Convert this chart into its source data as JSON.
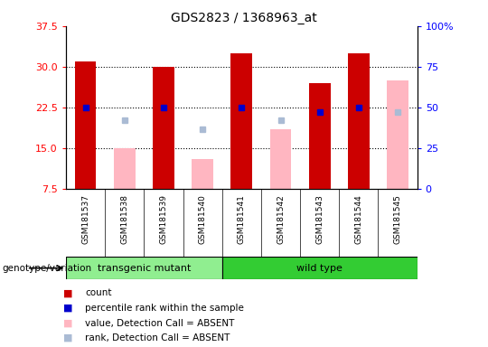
{
  "title": "GDS2823 / 1368963_at",
  "samples": [
    "GSM181537",
    "GSM181538",
    "GSM181539",
    "GSM181540",
    "GSM181541",
    "GSM181542",
    "GSM181543",
    "GSM181544",
    "GSM181545"
  ],
  "count_values": [
    31.0,
    null,
    30.0,
    null,
    32.5,
    null,
    27.0,
    32.5,
    null
  ],
  "rank_pct": [
    50.0,
    null,
    50.0,
    null,
    50.0,
    null,
    47.0,
    50.0,
    null
  ],
  "absent_value_values": [
    null,
    15.0,
    null,
    13.0,
    null,
    18.5,
    null,
    null,
    27.5
  ],
  "absent_rank_pct": [
    null,
    42.0,
    null,
    37.0,
    null,
    42.0,
    null,
    null,
    47.0
  ],
  "ylim_left": [
    7.5,
    37.5
  ],
  "ylim_right": [
    0,
    100
  ],
  "left_ticks": [
    7.5,
    15.0,
    22.5,
    30.0,
    37.5
  ],
  "right_ticks": [
    0,
    25,
    50,
    75,
    100
  ],
  "right_tick_labels": [
    "0",
    "25",
    "50",
    "75",
    "100%"
  ],
  "count_color": "#CC0000",
  "rank_color": "#0000CC",
  "absent_value_color": "#FFB6C1",
  "absent_rank_color": "#AABBD4",
  "group1_color": "#90EE90",
  "group2_color": "#33CC33",
  "groups_def": [
    {
      "start": 0,
      "end": 3,
      "label": "transgenic mutant",
      "color": "#90EE90"
    },
    {
      "start": 4,
      "end": 8,
      "label": "wild type",
      "color": "#33CC33"
    }
  ],
  "legend_items": [
    {
      "color": "#CC0000",
      "label": "count"
    },
    {
      "color": "#0000CC",
      "label": "percentile rank within the sample"
    },
    {
      "color": "#FFB6C1",
      "label": "value, Detection Call = ABSENT"
    },
    {
      "color": "#AABBD4",
      "label": "rank, Detection Call = ABSENT"
    }
  ]
}
